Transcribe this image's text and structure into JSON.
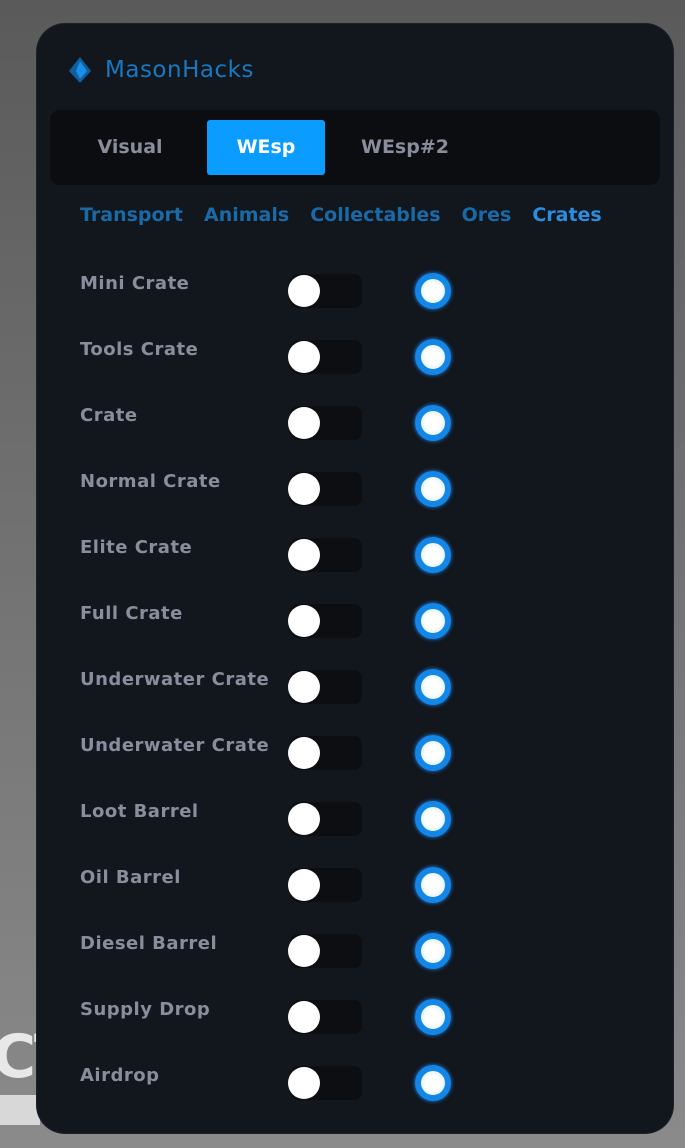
{
  "background_text": "CT",
  "app": {
    "title": "MasonHacks",
    "logo_icon": "diamond-flame-icon",
    "accent": "#0a9dff"
  },
  "tabs": [
    {
      "label": "Visual",
      "active": false
    },
    {
      "label": "WEsp",
      "active": true
    },
    {
      "label": "WEsp#2",
      "active": false
    }
  ],
  "subtabs": [
    {
      "label": "Transport",
      "active": false
    },
    {
      "label": "Animals",
      "active": false
    },
    {
      "label": "Collectables",
      "active": false
    },
    {
      "label": "Ores",
      "active": false
    },
    {
      "label": "Crates",
      "active": true
    }
  ],
  "items": [
    {
      "label": "Mini Crate",
      "toggle_on": false,
      "radio_selected": true
    },
    {
      "label": "Tools Crate",
      "toggle_on": false,
      "radio_selected": true
    },
    {
      "label": "Crate",
      "toggle_on": false,
      "radio_selected": true
    },
    {
      "label": "Normal Crate",
      "toggle_on": false,
      "radio_selected": true
    },
    {
      "label": "Elite Crate",
      "toggle_on": false,
      "radio_selected": true
    },
    {
      "label": "Full Crate",
      "toggle_on": false,
      "radio_selected": true
    },
    {
      "label": "Underwater Crate",
      "toggle_on": false,
      "radio_selected": true
    },
    {
      "label": "Underwater Crate",
      "toggle_on": false,
      "radio_selected": true
    },
    {
      "label": "Loot Barrel",
      "toggle_on": false,
      "radio_selected": true
    },
    {
      "label": "Oil Barrel",
      "toggle_on": false,
      "radio_selected": true
    },
    {
      "label": "Diesel Barrel",
      "toggle_on": false,
      "radio_selected": true
    },
    {
      "label": "Supply Drop",
      "toggle_on": false,
      "radio_selected": true
    },
    {
      "label": "Airdrop",
      "toggle_on": false,
      "radio_selected": true
    }
  ]
}
